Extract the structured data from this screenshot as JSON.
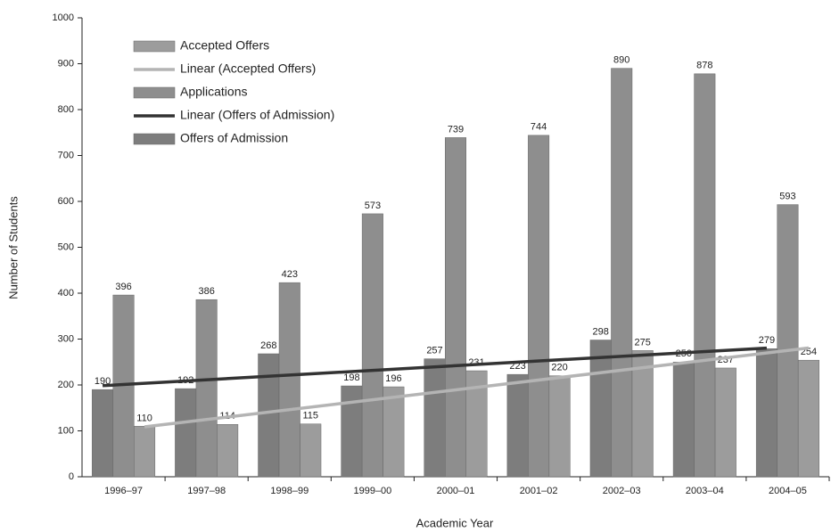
{
  "chart_data": {
    "type": "bar",
    "x_label": "Academic Year",
    "y_label": "Number of Students",
    "categories": [
      "1996–97",
      "1997–98",
      "1998–99",
      "1999–00",
      "2000–01",
      "2001–02",
      "2002–03",
      "2003–04",
      "2004–05"
    ],
    "series": [
      {
        "name": "Offers of Admission",
        "color": "#7d7d7d",
        "values": [
          190,
          192,
          268,
          198,
          257,
          223,
          298,
          250,
          279
        ]
      },
      {
        "name": "Applications",
        "color": "#8e8e8e",
        "values": [
          396,
          386,
          423,
          573,
          739,
          744,
          890,
          878,
          593
        ]
      },
      {
        "name": "Accepted Offers",
        "color": "#9c9c9c",
        "values": [
          110,
          114,
          115,
          196,
          231,
          220,
          275,
          237,
          254
        ]
      }
    ],
    "trendlines": [
      {
        "name": "Linear (Accepted Offers)",
        "of": "Accepted Offers",
        "color": "#b4b4b4"
      },
      {
        "name": "Linear (Offers of Admission)",
        "of": "Offers of Admission",
        "color": "#333333"
      }
    ],
    "legend_order": [
      "Accepted Offers",
      "Linear (Accepted Offers)",
      "Applications",
      "Linear (Offers of Admission)",
      "Offers of Admission"
    ],
    "ylim": [
      0,
      1000
    ],
    "yticks": [
      0,
      100,
      200,
      300,
      400,
      500,
      600,
      700,
      800,
      900,
      1000
    ],
    "grid": false,
    "legend": "upper left"
  }
}
